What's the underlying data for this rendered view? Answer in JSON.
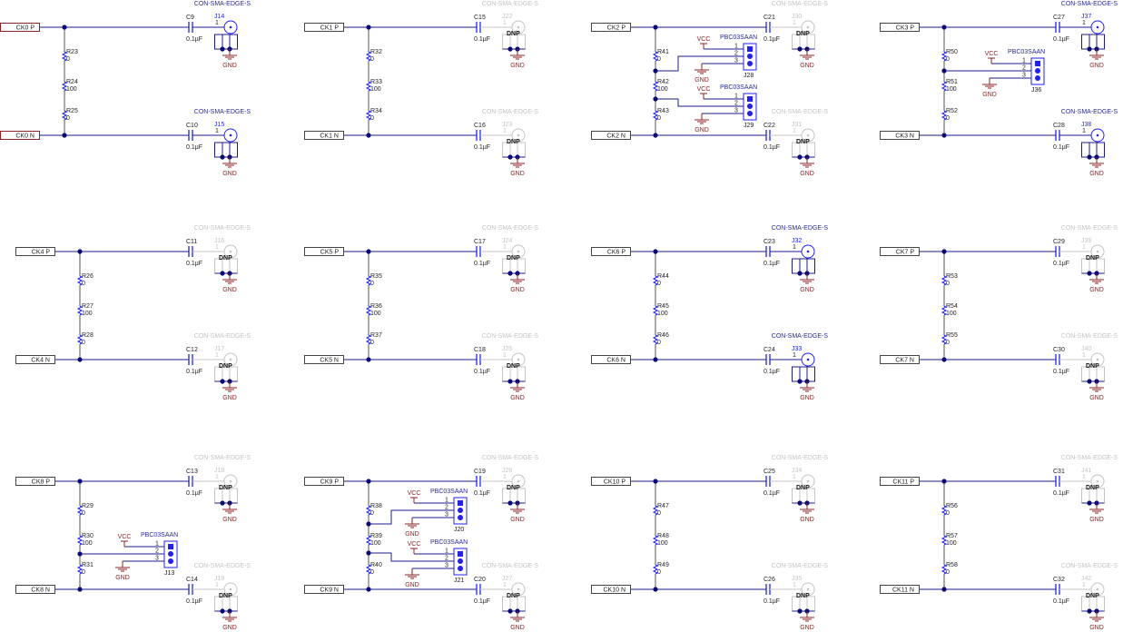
{
  "colors": {
    "wire": "#1c1c8e",
    "component": "#1f1fff",
    "label": "#222222",
    "power": "#8b2323",
    "inactive": "#c4c4c4",
    "port_border": "#444444",
    "port_border_active": "#8b2323",
    "junction": "#0a0a7a"
  },
  "blocks": [
    {
      "p_port": "CK0 P",
      "n_port": "CK0 N",
      "resistors": [
        {
          "ref": "R23",
          "value": "0"
        },
        {
          "ref": "R24",
          "value": "100"
        },
        {
          "ref": "R25",
          "value": "0"
        }
      ],
      "caps": [
        {
          "ref": "C9",
          "value": "0.1µF"
        },
        {
          "ref": "C10",
          "value": "0.1µF"
        }
      ],
      "connectors": [
        {
          "ref": "J14",
          "part": "CON-SMA-EDGE-S",
          "pin": "1",
          "dnp": null
        },
        {
          "ref": "J15",
          "part": "CON-SMA-EDGE-S",
          "pin": "1",
          "dnp": null
        }
      ],
      "gnd": "GND"
    },
    {
      "p_port": "CK1 P",
      "n_port": "CK1 N",
      "resistors": [
        {
          "ref": "R32",
          "value": "0"
        },
        {
          "ref": "R33",
          "value": "100"
        },
        {
          "ref": "R34",
          "value": "0"
        }
      ],
      "caps": [
        {
          "ref": "C15",
          "value": "0.1µF"
        },
        {
          "ref": "C16",
          "value": "0.1µF"
        }
      ],
      "connectors": [
        {
          "ref": "J22",
          "part": "CON-SMA-EDGE-S",
          "pin": "1",
          "dnp": "DNP"
        },
        {
          "ref": "J23",
          "part": "CON-SMA-EDGE-S",
          "pin": "1",
          "dnp": "DNP"
        }
      ],
      "gnd": "GND"
    },
    {
      "p_port": "CK2 P",
      "n_port": "CK2 N",
      "resistors": [
        {
          "ref": "R41",
          "value": "0"
        },
        {
          "ref": "R42",
          "value": "100"
        },
        {
          "ref": "R43",
          "value": "0"
        }
      ],
      "caps": [
        {
          "ref": "C21",
          "value": "0.1µF"
        },
        {
          "ref": "C22",
          "value": "0.1µF"
        }
      ],
      "connectors": [
        {
          "ref": "J30",
          "part": "CON-SMA-EDGE-S",
          "pin": "1",
          "dnp": "DNP"
        },
        {
          "ref": "J31",
          "part": "CON-SMA-EDGE-S",
          "pin": "1",
          "dnp": "DNP"
        }
      ],
      "gnd": "GND"
    },
    {
      "p_port": "CK3 P",
      "n_port": "CK3 N",
      "resistors": [
        {
          "ref": "R50",
          "value": "0"
        },
        {
          "ref": "R51",
          "value": "100"
        },
        {
          "ref": "R52",
          "value": "0"
        }
      ],
      "caps": [
        {
          "ref": "C27",
          "value": "0.1µF"
        },
        {
          "ref": "C28",
          "value": "0.1µF"
        }
      ],
      "connectors": [
        {
          "ref": "J37",
          "part": "CON-SMA-EDGE-S",
          "pin": "1",
          "dnp": null
        },
        {
          "ref": "J38",
          "part": "CON-SMA-EDGE-S",
          "pin": "1",
          "dnp": null
        }
      ],
      "gnd": "GND"
    },
    {
      "p_port": "CK4 P",
      "n_port": "CK4 N",
      "resistors": [
        {
          "ref": "R26",
          "value": "0"
        },
        {
          "ref": "R27",
          "value": "100"
        },
        {
          "ref": "R28",
          "value": "0"
        }
      ],
      "caps": [
        {
          "ref": "C11",
          "value": "0.1µF"
        },
        {
          "ref": "C12",
          "value": "0.1µF"
        }
      ],
      "connectors": [
        {
          "ref": "J16",
          "part": "CON-SMA-EDGE-S",
          "pin": "1",
          "dnp": "DNP"
        },
        {
          "ref": "J17",
          "part": "CON-SMA-EDGE-S",
          "pin": "1",
          "dnp": "DNP"
        }
      ],
      "gnd": "GND"
    },
    {
      "p_port": "CK5 P",
      "n_port": "CK5 N",
      "resistors": [
        {
          "ref": "R35",
          "value": "0"
        },
        {
          "ref": "R36",
          "value": "100"
        },
        {
          "ref": "R37",
          "value": "0"
        }
      ],
      "caps": [
        {
          "ref": "C17",
          "value": "0.1µF"
        },
        {
          "ref": "C18",
          "value": "0.1µF"
        }
      ],
      "connectors": [
        {
          "ref": "J24",
          "part": "CON-SMA-EDGE-S",
          "pin": "1",
          "dnp": "DNP"
        },
        {
          "ref": "J25",
          "part": "CON-SMA-EDGE-S",
          "pin": "1",
          "dnp": "DNP"
        }
      ],
      "gnd": "GND"
    },
    {
      "p_port": "CK6 P",
      "n_port": "CK6 N",
      "resistors": [
        {
          "ref": "R44",
          "value": "0"
        },
        {
          "ref": "R45",
          "value": "100"
        },
        {
          "ref": "R46",
          "value": "0"
        }
      ],
      "caps": [
        {
          "ref": "C23",
          "value": "0.1µF"
        },
        {
          "ref": "C24",
          "value": "0.1µF"
        }
      ],
      "connectors": [
        {
          "ref": "J32",
          "part": "CON-SMA-EDGE-S",
          "pin": "1",
          "dnp": null
        },
        {
          "ref": "J33",
          "part": "CON-SMA-EDGE-S",
          "pin": "1",
          "dnp": null
        }
      ],
      "gnd": "GND"
    },
    {
      "p_port": "CK7 P",
      "n_port": "CK7 N",
      "resistors": [
        {
          "ref": "R53",
          "value": "0"
        },
        {
          "ref": "R54",
          "value": "100"
        },
        {
          "ref": "R55",
          "value": "0"
        }
      ],
      "caps": [
        {
          "ref": "C29",
          "value": "0.1µF"
        },
        {
          "ref": "C30",
          "value": "0.1µF"
        }
      ],
      "connectors": [
        {
          "ref": "J39",
          "part": "CON-SMA-EDGE-S",
          "pin": "1",
          "dnp": "DNP"
        },
        {
          "ref": "J40",
          "part": "CON-SMA-EDGE-S",
          "pin": "1",
          "dnp": "DNP"
        }
      ],
      "gnd": "GND"
    },
    {
      "p_port": "CK8 P",
      "n_port": "CK8 N",
      "resistors": [
        {
          "ref": "R29",
          "value": "0"
        },
        {
          "ref": "R30",
          "value": "100"
        },
        {
          "ref": "R31",
          "value": "0"
        }
      ],
      "caps": [
        {
          "ref": "C13",
          "value": "0.1µF"
        },
        {
          "ref": "C14",
          "value": "0.1µF"
        }
      ],
      "connectors": [
        {
          "ref": "J18",
          "part": "CON-SMA-EDGE-S",
          "pin": "1",
          "dnp": "DNP"
        },
        {
          "ref": "J19",
          "part": "CON-SMA-EDGE-S",
          "pin": "1",
          "dnp": "DNP"
        }
      ],
      "gnd": "GND"
    },
    {
      "p_port": "CK9 P",
      "n_port": "CK9 N",
      "resistors": [
        {
          "ref": "R38",
          "value": "0"
        },
        {
          "ref": "R39",
          "value": "100"
        },
        {
          "ref": "R40",
          "value": "0"
        }
      ],
      "caps": [
        {
          "ref": "C19",
          "value": "0.1µF"
        },
        {
          "ref": "C20",
          "value": "0.1µF"
        }
      ],
      "connectors": [
        {
          "ref": "J26",
          "part": "CON-SMA-EDGE-S",
          "pin": "1",
          "dnp": "DNP"
        },
        {
          "ref": "J27",
          "part": "CON-SMA-EDGE-S",
          "pin": "1",
          "dnp": "DNP"
        }
      ],
      "gnd": "GND"
    },
    {
      "p_port": "CK10 P",
      "n_port": "CK10 N",
      "resistors": [
        {
          "ref": "R47",
          "value": "0"
        },
        {
          "ref": "R48",
          "value": "100"
        },
        {
          "ref": "R49",
          "value": "0"
        }
      ],
      "caps": [
        {
          "ref": "C25",
          "value": "0.1µF"
        },
        {
          "ref": "C26",
          "value": "0.1µF"
        }
      ],
      "connectors": [
        {
          "ref": "J34",
          "part": "CON-SMA-EDGE-S",
          "pin": "1",
          "dnp": "DNP"
        },
        {
          "ref": "J35",
          "part": "CON-SMA-EDGE-S",
          "pin": "1",
          "dnp": "DNP"
        }
      ],
      "gnd": "GND"
    },
    {
      "p_port": "CK11 P",
      "n_port": "CK11 N",
      "resistors": [
        {
          "ref": "R56",
          "value": "0"
        },
        {
          "ref": "R57",
          "value": "100"
        },
        {
          "ref": "R58",
          "value": "0"
        }
      ],
      "caps": [
        {
          "ref": "C31",
          "value": "0.1µF"
        },
        {
          "ref": "C32",
          "value": "0.1µF"
        }
      ],
      "connectors": [
        {
          "ref": "J41",
          "part": "CON-SMA-EDGE-S",
          "pin": "1",
          "dnp": "DNP"
        },
        {
          "ref": "J42",
          "part": "CON-SMA-EDGE-S",
          "pin": "1",
          "dnp": "DNP"
        }
      ],
      "gnd": "GND"
    }
  ],
  "headers": [
    {
      "ref": "J28",
      "part": "PBC03SAAN",
      "block": 2,
      "pins": [
        "1",
        "2",
        "3"
      ],
      "vcc": "VCC",
      "gnd": "GND"
    },
    {
      "ref": "J29",
      "part": "PBC03SAAN",
      "block": 2,
      "pins": [
        "1",
        "2",
        "3"
      ],
      "vcc": "VCC",
      "gnd": "GND"
    },
    {
      "ref": "J36",
      "part": "PBC03SAAN",
      "block": 3,
      "pins": [
        "1",
        "2",
        "3"
      ],
      "vcc": "VCC",
      "gnd": "GND"
    },
    {
      "ref": "J13",
      "part": "PBC03SAAN",
      "block": 8,
      "pins": [
        "1",
        "2",
        "3"
      ],
      "vcc": "VCC",
      "gnd": "GND"
    },
    {
      "ref": "J20",
      "part": "PBC03SAAN",
      "block": 9,
      "pins": [
        "1",
        "2",
        "3"
      ],
      "vcc": "VCC",
      "gnd": "GND"
    },
    {
      "ref": "J21",
      "part": "PBC03SAAN",
      "block": 9,
      "pins": [
        "1",
        "2",
        "3"
      ],
      "vcc": "VCC",
      "gnd": "GND"
    }
  ]
}
